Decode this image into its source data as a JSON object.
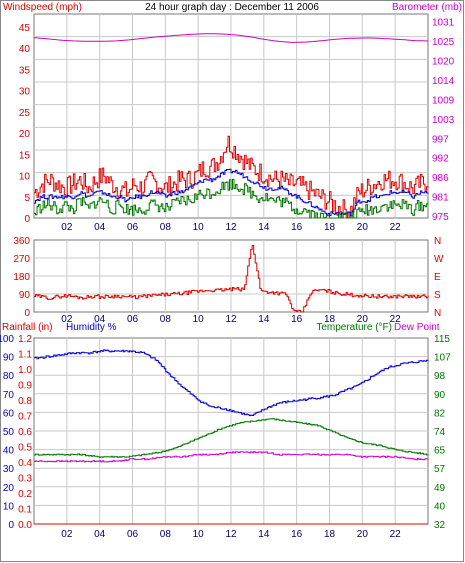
{
  "title": "24 hour graph day : December 11 2006",
  "colors": {
    "windspeed": "#dd0000",
    "windgust_series": "#dd0000",
    "wind_avg": "#0000cc",
    "wind_low": "#007700",
    "barometer": "#cc00cc",
    "direction": "#dd0000",
    "rainfall": "#dd0000",
    "humidity": "#0000cc",
    "temperature": "#007700",
    "dewpoint": "#cc00cc",
    "grid": "#c8c8c8"
  },
  "labels": {
    "windspeed": "Windspeed (mph)",
    "barometer": "Barometer (mb)",
    "rainfall": "Rainfall (in)",
    "humidity": "Humidity %",
    "temperature": "Temperature (°F)",
    "dewpoint": "Dew Point"
  },
  "chart_data": [
    {
      "type": "line",
      "panel": "wind",
      "xlabels": [
        "02",
        "04",
        "06",
        "08",
        "10",
        "12",
        "14",
        "16",
        "18",
        "20",
        "22"
      ],
      "y_left_ticks": [
        "0",
        "5",
        "10",
        "15",
        "20",
        "25",
        "30",
        "35",
        "40",
        "45"
      ],
      "y_right_ticks": [
        "975",
        "981",
        "986",
        "992",
        "997",
        "1003",
        "1009",
        "1014",
        "1020",
        "1025",
        "1031"
      ],
      "ylim_left": [
        0,
        48
      ],
      "ylim_right": [
        975,
        1031
      ],
      "series": [
        {
          "role": "gust",
          "values": [
            6,
            8,
            9,
            8,
            7,
            8,
            9,
            7,
            9,
            10,
            8,
            7,
            6,
            8,
            7,
            9,
            8,
            7,
            8,
            9,
            9,
            10,
            12,
            12,
            14,
            18,
            16,
            14,
            12,
            11,
            10,
            9,
            9,
            8,
            8,
            7,
            6,
            5,
            4,
            3,
            2,
            2,
            6,
            7,
            8,
            9,
            9,
            9,
            8,
            7,
            8,
            9
          ]
        },
        {
          "role": "avg",
          "values": [
            4,
            5,
            5,
            5,
            5,
            5,
            6,
            5,
            6,
            6,
            5,
            5,
            4,
            5,
            5,
            6,
            6,
            5,
            6,
            6,
            7,
            8,
            9,
            9,
            10,
            11,
            11,
            10,
            9,
            8,
            7,
            7,
            7,
            6,
            5,
            4,
            3,
            2,
            1,
            1,
            1,
            1,
            4,
            4,
            5,
            5,
            6,
            6,
            6,
            5,
            6,
            6
          ]
        },
        {
          "role": "low",
          "values": [
            1,
            3,
            3,
            2,
            3,
            2,
            4,
            2,
            4,
            4,
            2,
            3,
            2,
            2,
            2,
            3,
            3,
            2,
            3,
            4,
            4,
            5,
            6,
            6,
            7,
            8,
            8,
            7,
            6,
            5,
            5,
            4,
            4,
            3,
            2,
            2,
            1,
            0,
            0,
            0,
            0,
            0,
            1,
            2,
            2,
            3,
            3,
            3,
            3,
            2,
            3,
            3
          ]
        },
        {
          "role": "barometer",
          "values": [
            1024.5,
            1024.2,
            1023.8,
            1023.6,
            1023.5,
            1023.5,
            1023.6,
            1023.9,
            1024.3,
            1024.7,
            1025.0,
            1025.3,
            1025.5,
            1025.6,
            1025.5,
            1025.2,
            1024.7,
            1024.0,
            1023.5,
            1023.2,
            1023.3,
            1023.6,
            1024.0,
            1024.3,
            1024.4,
            1024.4,
            1024.2,
            1024.0,
            1023.7,
            1023.6
          ]
        }
      ]
    },
    {
      "type": "line",
      "panel": "wind_direction",
      "xlabels": [
        "02",
        "04",
        "06",
        "08",
        "10",
        "12",
        "14",
        "16",
        "18",
        "20",
        "22"
      ],
      "y_left_ticks": [
        "0",
        "90",
        "180",
        "270",
        "360"
      ],
      "y_right_ticks": [
        "N",
        "S",
        "E",
        "W",
        "N"
      ],
      "ylim": [
        0,
        360
      ],
      "series": [
        {
          "role": "direction",
          "values": [
            80,
            75,
            70,
            78,
            82,
            75,
            72,
            80,
            75,
            78,
            80,
            76,
            74,
            78,
            82,
            85,
            88,
            90,
            95,
            100,
            105,
            110,
            108,
            112,
            115,
            110,
            345,
            105,
            100,
            95,
            90,
            0,
            0,
            100,
            110,
            105,
            95,
            90,
            85,
            82,
            80,
            78,
            75,
            78,
            80,
            78,
            75,
            80
          ]
        }
      ]
    },
    {
      "type": "line",
      "panel": "temp_humidity",
      "xlabels": [
        "02",
        "04",
        "06",
        "08",
        "10",
        "12",
        "14",
        "16",
        "18",
        "20",
        "22"
      ],
      "y_left_ticks": [
        "0",
        "10",
        "20",
        "30",
        "40",
        "50",
        "60",
        "70",
        "80",
        "90",
        "100"
      ],
      "y_rain_ticks": [
        "0.0",
        "0.1",
        "0.2",
        "0.3",
        "0.4",
        "0.5",
        "0.6",
        "0.7",
        "0.8",
        "0.9",
        "1.0",
        "1.1",
        "1.2"
      ],
      "y_right_ticks": [
        "32",
        "40",
        "49",
        "57",
        "65",
        "74",
        "82",
        "90",
        "98",
        "107",
        "115"
      ],
      "ylim_left": [
        0,
        100
      ],
      "ylim_right": [
        32,
        115
      ],
      "series": [
        {
          "role": "humidity",
          "values": [
            89,
            90,
            91,
            92,
            92,
            93,
            93,
            93,
            92,
            88,
            80,
            73,
            67,
            63,
            62,
            60,
            58,
            62,
            65,
            66,
            67,
            68,
            69,
            72,
            75,
            80,
            84,
            86,
            87,
            88
          ]
        },
        {
          "role": "temperature",
          "values": [
            63,
            63,
            63,
            63,
            62,
            62,
            62,
            63,
            64,
            66,
            69,
            72,
            75,
            77,
            78,
            79,
            78,
            77,
            76,
            73,
            70,
            68,
            67,
            65,
            64,
            63
          ]
        },
        {
          "role": "dewpoint",
          "values": [
            60,
            60,
            60,
            60,
            60,
            60,
            61,
            61,
            62,
            62,
            63,
            63,
            64,
            64,
            64,
            63,
            63,
            63,
            63,
            63,
            62,
            62,
            62,
            61,
            61
          ]
        },
        {
          "role": "rainfall",
          "values": [
            0,
            0,
            0,
            0,
            0,
            0,
            0,
            0,
            0,
            0,
            0,
            0
          ]
        }
      ]
    }
  ]
}
